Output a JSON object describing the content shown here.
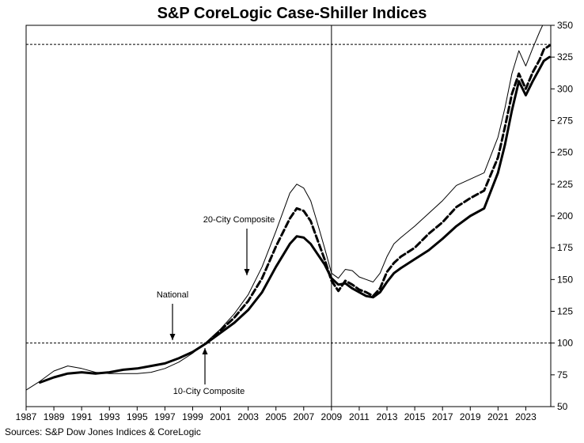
{
  "title": "S&P CoreLogic Case-Shiller Indices",
  "source": "Sources: S&P Dow Jones Indices & CoreLogic",
  "chart_data": {
    "type": "line",
    "title": "S&P CoreLogic Case-Shiller Indices",
    "xlabel": "",
    "ylabel": "",
    "xlim": [
      1987,
      2024.8
    ],
    "ylim": [
      50,
      350
    ],
    "x_ticks": [
      "1987",
      "1989",
      "1991",
      "1993",
      "1995",
      "1997",
      "1999",
      "2001",
      "2003",
      "2005",
      "2007",
      "2009",
      "2011",
      "2013",
      "2015",
      "2017",
      "2019",
      "2021",
      "2023"
    ],
    "y_ticks": [
      50,
      75,
      100,
      125,
      150,
      175,
      200,
      225,
      250,
      275,
      300,
      325,
      350
    ],
    "y_axis_side": "right",
    "grid": false,
    "legend": "none",
    "reference_lines": [
      {
        "orientation": "horizontal",
        "y": 100,
        "style": "dotted"
      },
      {
        "orientation": "horizontal",
        "y": 335,
        "style": "dotted"
      },
      {
        "orientation": "vertical",
        "x": 2009,
        "style": "solid"
      }
    ],
    "annotations": [
      {
        "text": "20-City Composite",
        "series": "20-City Composite",
        "x": 2003.0,
        "y": 195
      },
      {
        "text": "National",
        "series": "National",
        "x": 1998.0,
        "y": 150
      },
      {
        "text": "10-City Composite",
        "series": "10-City Composite",
        "x": 2001.5,
        "y": 63
      }
    ],
    "series": [
      {
        "name": "National",
        "style": "thick-solid",
        "color": "#000000",
        "points": [
          [
            1988.0,
            69
          ],
          [
            1989.0,
            73
          ],
          [
            1990.0,
            76
          ],
          [
            1991.0,
            77
          ],
          [
            1992.0,
            76
          ],
          [
            1993.0,
            77
          ],
          [
            1994.0,
            79
          ],
          [
            1995.0,
            80
          ],
          [
            1996.0,
            82
          ],
          [
            1997.0,
            84
          ],
          [
            1998.0,
            88
          ],
          [
            1999.0,
            93
          ],
          [
            2000.0,
            100
          ],
          [
            2001.0,
            108
          ],
          [
            2002.0,
            116
          ],
          [
            2003.0,
            126
          ],
          [
            2004.0,
            140
          ],
          [
            2005.0,
            160
          ],
          [
            2006.0,
            178
          ],
          [
            2006.5,
            184
          ],
          [
            2007.0,
            183
          ],
          [
            2007.5,
            178
          ],
          [
            2008.0,
            170
          ],
          [
            2008.5,
            162
          ],
          [
            2009.0,
            151
          ],
          [
            2009.5,
            146
          ],
          [
            2010.0,
            147
          ],
          [
            2010.5,
            143
          ],
          [
            2011.0,
            140
          ],
          [
            2011.5,
            137
          ],
          [
            2012.0,
            136
          ],
          [
            2012.5,
            140
          ],
          [
            2013.0,
            148
          ],
          [
            2013.5,
            155
          ],
          [
            2014.0,
            159
          ],
          [
            2015.0,
            166
          ],
          [
            2016.0,
            173
          ],
          [
            2017.0,
            182
          ],
          [
            2018.0,
            192
          ],
          [
            2019.0,
            200
          ],
          [
            2020.0,
            206
          ],
          [
            2021.0,
            234
          ],
          [
            2021.5,
            256
          ],
          [
            2022.0,
            283
          ],
          [
            2022.5,
            306
          ],
          [
            2023.0,
            295
          ],
          [
            2023.5,
            306
          ],
          [
            2024.0,
            316
          ],
          [
            2024.3,
            322
          ],
          [
            2024.7,
            325
          ]
        ]
      },
      {
        "name": "20-City Composite",
        "style": "thick-dashed",
        "color": "#000000",
        "points": [
          [
            2000.0,
            100
          ],
          [
            2001.0,
            110
          ],
          [
            2002.0,
            120
          ],
          [
            2003.0,
            133
          ],
          [
            2004.0,
            151
          ],
          [
            2005.0,
            176
          ],
          [
            2006.0,
            198
          ],
          [
            2006.5,
            206
          ],
          [
            2007.0,
            204
          ],
          [
            2007.5,
            196
          ],
          [
            2008.0,
            181
          ],
          [
            2008.5,
            166
          ],
          [
            2009.0,
            149
          ],
          [
            2009.5,
            141
          ],
          [
            2010.0,
            149
          ],
          [
            2010.5,
            146
          ],
          [
            2011.0,
            142
          ],
          [
            2011.5,
            140
          ],
          [
            2012.0,
            137
          ],
          [
            2012.5,
            143
          ],
          [
            2013.0,
            156
          ],
          [
            2013.5,
            163
          ],
          [
            2014.0,
            168
          ],
          [
            2015.0,
            175
          ],
          [
            2016.0,
            186
          ],
          [
            2017.0,
            195
          ],
          [
            2018.0,
            207
          ],
          [
            2019.0,
            214
          ],
          [
            2020.0,
            220
          ],
          [
            2021.0,
            246
          ],
          [
            2021.5,
            270
          ],
          [
            2022.0,
            296
          ],
          [
            2022.5,
            312
          ],
          [
            2023.0,
            300
          ],
          [
            2023.5,
            313
          ],
          [
            2024.0,
            323
          ],
          [
            2024.3,
            331
          ],
          [
            2024.7,
            334
          ]
        ]
      },
      {
        "name": "10-City Composite",
        "style": "thin-solid",
        "color": "#000000",
        "points": [
          [
            1987.0,
            63
          ],
          [
            1988.0,
            70
          ],
          [
            1989.0,
            78
          ],
          [
            1990.0,
            82
          ],
          [
            1991.0,
            80
          ],
          [
            1992.0,
            77
          ],
          [
            1993.0,
            76
          ],
          [
            1994.0,
            76
          ],
          [
            1995.0,
            76
          ],
          [
            1996.0,
            77
          ],
          [
            1997.0,
            80
          ],
          [
            1998.0,
            85
          ],
          [
            1999.0,
            92
          ],
          [
            2000.0,
            101
          ],
          [
            2001.0,
            111
          ],
          [
            2002.0,
            123
          ],
          [
            2003.0,
            138
          ],
          [
            2004.0,
            160
          ],
          [
            2005.0,
            188
          ],
          [
            2006.0,
            218
          ],
          [
            2006.5,
            225
          ],
          [
            2007.0,
            222
          ],
          [
            2007.5,
            212
          ],
          [
            2008.0,
            194
          ],
          [
            2008.5,
            175
          ],
          [
            2009.0,
            155
          ],
          [
            2009.5,
            151
          ],
          [
            2010.0,
            158
          ],
          [
            2010.5,
            157
          ],
          [
            2011.0,
            152
          ],
          [
            2011.5,
            150
          ],
          [
            2012.0,
            148
          ],
          [
            2012.5,
            155
          ],
          [
            2013.0,
            168
          ],
          [
            2013.5,
            178
          ],
          [
            2014.0,
            183
          ],
          [
            2015.0,
            192
          ],
          [
            2016.0,
            202
          ],
          [
            2017.0,
            212
          ],
          [
            2018.0,
            224
          ],
          [
            2019.0,
            229
          ],
          [
            2020.0,
            234
          ],
          [
            2021.0,
            262
          ],
          [
            2021.5,
            285
          ],
          [
            2022.0,
            312
          ],
          [
            2022.5,
            330
          ],
          [
            2023.0,
            318
          ],
          [
            2023.5,
            332
          ],
          [
            2024.0,
            345
          ],
          [
            2024.3,
            352
          ],
          [
            2024.7,
            358
          ]
        ]
      }
    ]
  }
}
